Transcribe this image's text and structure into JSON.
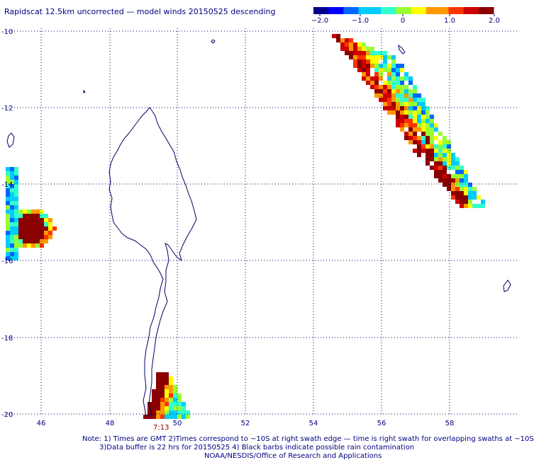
{
  "title": "Rapidscat 12.5km uncorrected — model winds 20150525 descending",
  "colorbar": {
    "colors": [
      "#00008b",
      "#0000ff",
      "#0066ff",
      "#00ccff",
      "#33ffcc",
      "#99ff33",
      "#ffff00",
      "#ff9900",
      "#ff3300",
      "#cc0000",
      "#8b0000"
    ],
    "tick_labels": [
      "−2.0",
      "−1.0",
      "0",
      "1.0",
      "2.0"
    ]
  },
  "axes": {
    "lon_labels": [
      "46",
      "48",
      "50",
      "52",
      "54",
      "56",
      "58"
    ],
    "lat_labels": [
      "-10",
      "-12",
      "-14",
      "-16",
      "-18",
      "-20"
    ]
  },
  "time_label": "7:13",
  "notes": [
    "Note: 1) Times are GMT 2)Times correspond to ~10S at right swath edge — time is right swath for overlapping swaths at ~10S",
    "3)Data buffer is 22 hrs for 20150525 4) Black barbs indicate possible rain contamination",
    "NOAA/NESDIS/Office of Research and Applications"
  ]
}
